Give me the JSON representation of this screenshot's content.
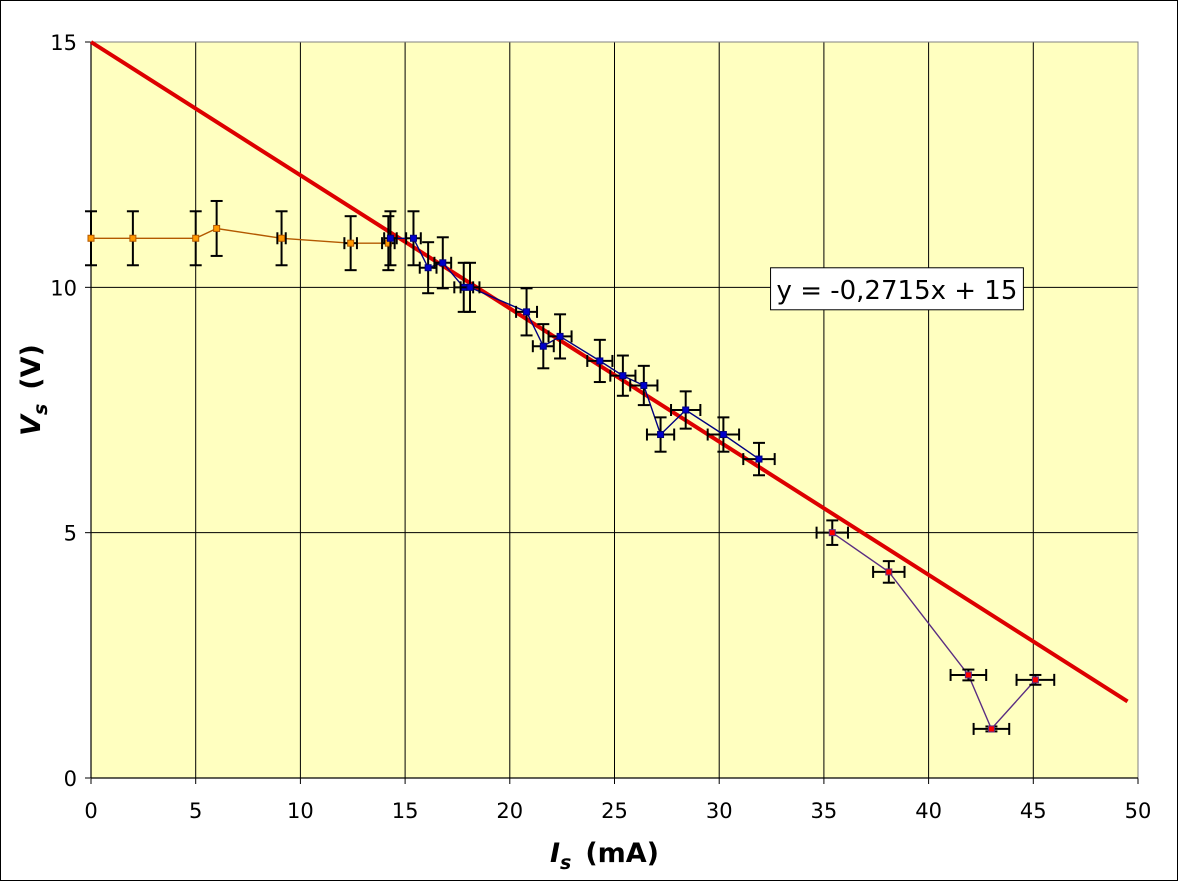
{
  "chart_data": {
    "type": "scatter",
    "title": "",
    "xlabel": {
      "main": "I",
      "sub": "s",
      "unit": "(mA)"
    },
    "ylabel": {
      "main": "V",
      "sub": "s",
      "unit": "(V)"
    },
    "xlim": [
      0,
      50
    ],
    "ylim": [
      0,
      15
    ],
    "xticks": [
      "0",
      "5",
      "10",
      "15",
      "20",
      "25",
      "30",
      "35",
      "40",
      "45",
      "50"
    ],
    "yticks": [
      "0",
      "5",
      "10",
      "15"
    ],
    "grid": true,
    "colors": {
      "plot_background": "#ffffc0",
      "gridline": "#000000",
      "fit_line": "#dd0000"
    },
    "series": [
      {
        "color": "#b35900",
        "marker_fill": "#ff9900",
        "points": [
          {
            "x": 0.0,
            "y": 11.0,
            "xerr": 0,
            "yerr": 0.55
          },
          {
            "x": 2.0,
            "y": 11.0,
            "xerr": 0,
            "yerr": 0.55
          },
          {
            "x": 5.0,
            "y": 11.0,
            "xerr": 0,
            "yerr": 0.55
          },
          {
            "x": 6.0,
            "y": 11.2,
            "xerr": 0,
            "yerr": 0.56
          },
          {
            "x": 9.1,
            "y": 11.0,
            "xerr": 0.2,
            "yerr": 0.55
          },
          {
            "x": 12.4,
            "y": 10.9,
            "xerr": 0.3,
            "yerr": 0.55
          },
          {
            "x": 14.2,
            "y": 10.9,
            "xerr": 0.3,
            "yerr": 0.55
          }
        ]
      },
      {
        "color": "#000080",
        "marker_fill": "#0000cc",
        "points": [
          {
            "x": 14.3,
            "y": 11.0,
            "xerr": 0.3,
            "yerr": 0.55
          },
          {
            "x": 15.4,
            "y": 11.0,
            "xerr": 0.35,
            "yerr": 0.55
          },
          {
            "x": 16.1,
            "y": 10.4,
            "xerr": 0.4,
            "yerr": 0.52
          },
          {
            "x": 16.8,
            "y": 10.5,
            "xerr": 0.4,
            "yerr": 0.52
          },
          {
            "x": 17.8,
            "y": 10.0,
            "xerr": 0.45,
            "yerr": 0.5
          },
          {
            "x": 18.1,
            "y": 10.0,
            "xerr": 0.45,
            "yerr": 0.5
          },
          {
            "x": 20.8,
            "y": 9.5,
            "xerr": 0.5,
            "yerr": 0.48
          },
          {
            "x": 21.6,
            "y": 8.8,
            "xerr": 0.5,
            "yerr": 0.45
          },
          {
            "x": 22.4,
            "y": 9.0,
            "xerr": 0.55,
            "yerr": 0.45
          },
          {
            "x": 24.3,
            "y": 8.5,
            "xerr": 0.6,
            "yerr": 0.43
          },
          {
            "x": 25.4,
            "y": 8.2,
            "xerr": 0.6,
            "yerr": 0.41
          },
          {
            "x": 26.4,
            "y": 8.0,
            "xerr": 0.65,
            "yerr": 0.4
          },
          {
            "x": 27.2,
            "y": 7.0,
            "xerr": 0.65,
            "yerr": 0.35
          },
          {
            "x": 28.4,
            "y": 7.5,
            "xerr": 0.7,
            "yerr": 0.38
          },
          {
            "x": 30.2,
            "y": 7.0,
            "xerr": 0.75,
            "yerr": 0.35
          },
          {
            "x": 31.9,
            "y": 6.5,
            "xerr": 0.75,
            "yerr": 0.33
          }
        ]
      },
      {
        "color": "#5a2d82",
        "marker_fill": "#ff0000",
        "points": [
          {
            "x": 35.4,
            "y": 5.0,
            "xerr": 0.75,
            "yerr": 0.25
          },
          {
            "x": 38.1,
            "y": 4.2,
            "xerr": 0.75,
            "yerr": 0.22
          },
          {
            "x": 41.9,
            "y": 2.1,
            "xerr": 0.85,
            "yerr": 0.11
          },
          {
            "x": 43.0,
            "y": 1.0,
            "xerr": 0.85,
            "yerr": 0.05
          },
          {
            "x": 45.1,
            "y": 2.0,
            "xerr": 0.9,
            "yerr": 0.1
          }
        ]
      }
    ],
    "fit_line": {
      "slope": -0.2715,
      "intercept": 15,
      "x_start": 0,
      "x_end": 49.5
    },
    "annotation": {
      "text": "y = -0,2715x + 15",
      "x": 32.5,
      "y": 9.95
    }
  }
}
